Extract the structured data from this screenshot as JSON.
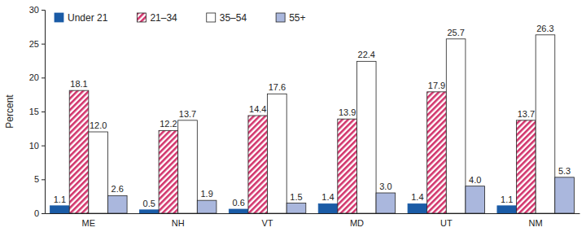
{
  "chart_data": {
    "type": "bar",
    "y_label": "Percent",
    "categories": [
      "ME",
      "NH",
      "VT",
      "MD",
      "UT",
      "NM"
    ],
    "series": [
      {
        "name": "Under 21",
        "color": "#1a5ba6",
        "values": [
          1.1,
          0.5,
          0.6,
          1.4,
          1.4,
          1.1
        ]
      },
      {
        "name": "21–34",
        "color": "#d2336b",
        "values": [
          18.1,
          12.2,
          14.4,
          13.9,
          17.9,
          13.7
        ]
      },
      {
        "name": "35–54",
        "color": "#ffffff",
        "values": [
          12.0,
          13.7,
          17.6,
          22.4,
          25.7,
          26.3
        ],
        "value_labels": [
          "12.0",
          "13.7",
          "17.6",
          "22.4",
          "25.7",
          "26.3"
        ]
      },
      {
        "name": "55+",
        "color": "#aab7dd",
        "values": [
          2.6,
          1.9,
          1.5,
          3.0,
          4.0,
          5.3
        ],
        "value_labels": [
          "2.6",
          "1.9",
          "1.5",
          "3.0",
          "4.0",
          "5.3"
        ]
      }
    ],
    "ylim": [
      0,
      30
    ],
    "yticks": [
      0,
      5,
      10,
      15,
      20,
      25,
      30
    ],
    "grid": false,
    "legend": "upper left",
    "data_labels": true
  }
}
